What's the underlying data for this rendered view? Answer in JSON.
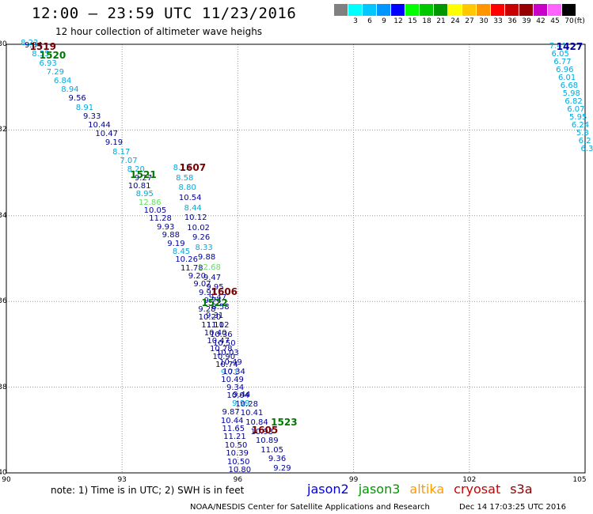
{
  "header": {
    "title": "12:00 — 23:59 UTC 11/23/2016",
    "subtitle": "12 hour collection of altimeter wave heighs"
  },
  "color_scale": {
    "unit": "(ft)",
    "bins": [
      {
        "label": "",
        "color": "#808080"
      },
      {
        "label": "3",
        "color": "#00ffff"
      },
      {
        "label": "6",
        "color": "#00c8ff"
      },
      {
        "label": "9",
        "color": "#0096ff"
      },
      {
        "label": "12",
        "color": "#0000ff"
      },
      {
        "label": "15",
        "color": "#00ff00"
      },
      {
        "label": "18",
        "color": "#00c800"
      },
      {
        "label": "21",
        "color": "#009600"
      },
      {
        "label": "24",
        "color": "#ffff00"
      },
      {
        "label": "27",
        "color": "#ffc800"
      },
      {
        "label": "30",
        "color": "#ff9600"
      },
      {
        "label": "33",
        "color": "#ff0000"
      },
      {
        "label": "36",
        "color": "#c80000"
      },
      {
        "label": "39",
        "color": "#960000"
      },
      {
        "label": "42",
        "color": "#c800c8"
      },
      {
        "label": "45",
        "color": "#ff64ff"
      },
      {
        "label": "70",
        "color": "#000000"
      }
    ]
  },
  "map": {
    "lon_range": [
      90,
      105
    ],
    "lat_range": [
      -30,
      -40
    ],
    "lon_ticks": [
      "90",
      "93",
      "96",
      "99",
      "102",
      "105"
    ],
    "lat_ticks": [
      "-30",
      "-32",
      "-34",
      "-36",
      "-38",
      "-40"
    ],
    "colors": {
      "blue": "#000099",
      "cyan": "#00aadd",
      "green": "#007700",
      "lightgreen": "#66dd66",
      "darkred": "#770000"
    },
    "pass_labels": [
      {
        "text": "1519",
        "lon": 90.95,
        "lat": -30.06,
        "color": "darkred"
      },
      {
        "text": "1520",
        "lon": 91.2,
        "lat": -30.25,
        "color": "green"
      },
      {
        "text": "1427",
        "lon": 104.6,
        "lat": -30.05,
        "color": "blue"
      },
      {
        "text": "1607",
        "lon": 94.83,
        "lat": -32.88,
        "color": "darkred"
      },
      {
        "text": "1521",
        "lon": 93.55,
        "lat": -33.05,
        "color": "green"
      },
      {
        "text": "1606",
        "lon": 95.65,
        "lat": -35.78,
        "color": "darkred"
      },
      {
        "text": "1522",
        "lon": 95.4,
        "lat": -36.04,
        "color": "green"
      },
      {
        "text": "1523",
        "lon": 97.2,
        "lat": -38.82,
        "color": "green"
      },
      {
        "text": "1605",
        "lon": 96.7,
        "lat": -39.0,
        "color": "darkred"
      }
    ],
    "tracks": [
      {
        "name": "track-a",
        "start": [
          90.7,
          -30.04
        ],
        "end": [
          93.55,
          -33.14
        ],
        "color": "blue",
        "values": [
          "9.04",
          "8.55",
          "6.93",
          "7.29",
          "6.84",
          "8.94",
          "9.56",
          "8.91",
          "9.33",
          "10.44",
          "10.47",
          "9.19",
          "8.17",
          "7.07",
          "8.20",
          "9.27"
        ],
        "value_colors": [
          "blue",
          "cyan",
          "cyan",
          "cyan",
          "cyan",
          "cyan",
          "blue",
          "cyan",
          "blue",
          "blue",
          "blue",
          "blue",
          "cyan",
          "cyan",
          "cyan",
          "blue"
        ]
      },
      {
        "name": "track-b",
        "start": [
          90.6,
          -29.98
        ],
        "end": [
          90.6,
          -29.98
        ],
        "color": "cyan",
        "values": [
          "8.22"
        ],
        "value_colors": [
          "cyan"
        ]
      },
      {
        "name": "track-c",
        "start": [
          93.45,
          -33.32
        ],
        "end": [
          95.35,
          -36.0
        ],
        "color": "blue",
        "values": [
          "10.81",
          "8.95",
          "12.86",
          "10.05",
          "11.28",
          "9.93",
          "9.88",
          "9.19",
          "8.45",
          "10.26",
          "11.78",
          "9.20",
          "9.07",
          "9.93",
          "9.74"
        ],
        "value_colors": [
          "blue",
          "cyan",
          "lightgreen",
          "blue",
          "blue",
          "blue",
          "blue",
          "blue",
          "cyan",
          "blue",
          "blue",
          "blue",
          "blue",
          "blue",
          "blue"
        ]
      },
      {
        "name": "track-d",
        "start": [
          94.55,
          -32.9
        ],
        "end": [
          95.55,
          -36.15
        ],
        "color": "cyan",
        "values": [
          "8.13",
          "8.58",
          "8.80",
          "10.54",
          "8.44",
          "10.12",
          "10.02",
          "9.26",
          "8.33",
          "9.88",
          "12.68",
          "9.47",
          "9.95",
          "9.47",
          "8.58"
        ],
        "value_colors": [
          "cyan",
          "cyan",
          "cyan",
          "blue",
          "cyan",
          "blue",
          "blue",
          "blue",
          "cyan",
          "blue",
          "lightgreen",
          "blue",
          "blue",
          "blue",
          "blue"
        ]
      },
      {
        "name": "track-e",
        "start": [
          95.2,
          -36.2
        ],
        "end": [
          96.08,
          -38.4
        ],
        "color": "blue",
        "values": [
          "9.28",
          "10.20",
          "11.11",
          "10.40",
          "10.47",
          "10.78",
          "10.90",
          "10.74",
          "9.71",
          "10.49",
          "9.34",
          "10.04",
          "9.99"
        ],
        "value_colors": [
          "blue",
          "blue",
          "blue",
          "blue",
          "blue",
          "blue",
          "blue",
          "blue",
          "cyan",
          "blue",
          "blue",
          "blue",
          "cyan"
        ]
      },
      {
        "name": "track-f",
        "start": [
          95.4,
          -36.35
        ],
        "end": [
          95.9,
          -37.65
        ],
        "color": "blue",
        "values": [
          "9.31",
          "11.02",
          "10.36",
          "10.50",
          "10.03",
          "10.49",
          "10.34"
        ],
        "value_colors": [
          "blue",
          "blue",
          "blue",
          "blue",
          "blue",
          "blue",
          "blue"
        ]
      },
      {
        "name": "track-g",
        "start": [
          96.1,
          -38.2
        ],
        "end": [
          97.15,
          -39.9
        ],
        "color": "blue",
        "values": [
          "9.44",
          "10.28",
          "10.41",
          "10.84",
          "10.93",
          "10.89",
          "11.05",
          "9.36",
          "9.29"
        ],
        "value_colors": [
          "blue",
          "blue",
          "blue",
          "blue",
          "blue",
          "blue",
          "blue",
          "blue",
          "blue"
        ]
      },
      {
        "name": "track-h",
        "start": [
          95.82,
          -38.6
        ],
        "end": [
          96.05,
          -39.95
        ],
        "color": "blue",
        "values": [
          "9.87",
          "10.44",
          "11.65",
          "11.21",
          "10.50",
          "10.39",
          "10.50",
          "10.80"
        ],
        "value_colors": [
          "blue",
          "blue",
          "blue",
          "blue",
          "blue",
          "blue",
          "blue",
          "blue"
        ]
      },
      {
        "name": "track-i",
        "start": [
          104.3,
          -30.05
        ],
        "end": [
          105.05,
          -32.45
        ],
        "color": "cyan",
        "values": [
          "7.41",
          "6.05",
          "6.77",
          "6.96",
          "6.01",
          "6.68",
          "5.98",
          "6.82",
          "6.07",
          "5.95",
          "6.24",
          "5.8",
          "6.2",
          "6.3"
        ],
        "value_colors": [
          "cyan",
          "cyan",
          "cyan",
          "cyan",
          "cyan",
          "cyan",
          "cyan",
          "cyan",
          "cyan",
          "cyan",
          "cyan",
          "cyan",
          "cyan",
          "cyan"
        ]
      }
    ]
  },
  "note": "note: 1) Time is in UTC; 2) SWH is in feet",
  "legend": [
    {
      "label": "jason2",
      "color": "#0000dd"
    },
    {
      "label": "jason3",
      "color": "#009900"
    },
    {
      "label": "altika",
      "color": "#ff9900"
    },
    {
      "label": "cryosat",
      "color": "#cc0000"
    },
    {
      "label": "s3a",
      "color": "#880000"
    }
  ],
  "footer": {
    "center": "NOAA/NESDIS Center for Satellite Applications and Research",
    "right": "Dec 14 17:03:25 UTC 2016"
  }
}
